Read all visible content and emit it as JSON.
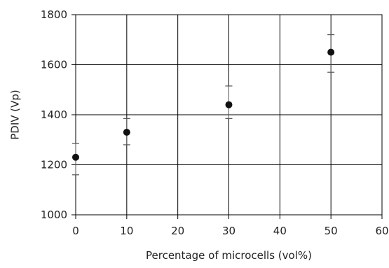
{
  "chart_data": {
    "type": "scatter",
    "title": "",
    "xlabel": "Percentage of microcells (vol%)",
    "ylabel": "PDIV (Vp)",
    "xlim": [
      0,
      60
    ],
    "ylim": [
      1000,
      1800
    ],
    "xticks": [
      0,
      10,
      20,
      30,
      40,
      50,
      60
    ],
    "yticks": [
      1000,
      1200,
      1400,
      1600,
      1800
    ],
    "xtick_labels": [
      "0",
      "10",
      "20",
      "30",
      "40",
      "50",
      "60"
    ],
    "ytick_labels": [
      "1000",
      "1200",
      "1400",
      "1600",
      "1800"
    ],
    "grid": true,
    "points": [
      {
        "x": 0,
        "y": 1230,
        "err_low": 1160,
        "err_high": 1285
      },
      {
        "x": 10,
        "y": 1330,
        "err_low": 1280,
        "err_high": 1385
      },
      {
        "x": 30,
        "y": 1440,
        "err_low": 1385,
        "err_high": 1515
      },
      {
        "x": 50,
        "y": 1650,
        "err_low": 1570,
        "err_high": 1720
      }
    ],
    "colors": {
      "axis": "#000000",
      "grid": "#000000",
      "marker": "#111111",
      "errorbar": "#555555"
    }
  }
}
